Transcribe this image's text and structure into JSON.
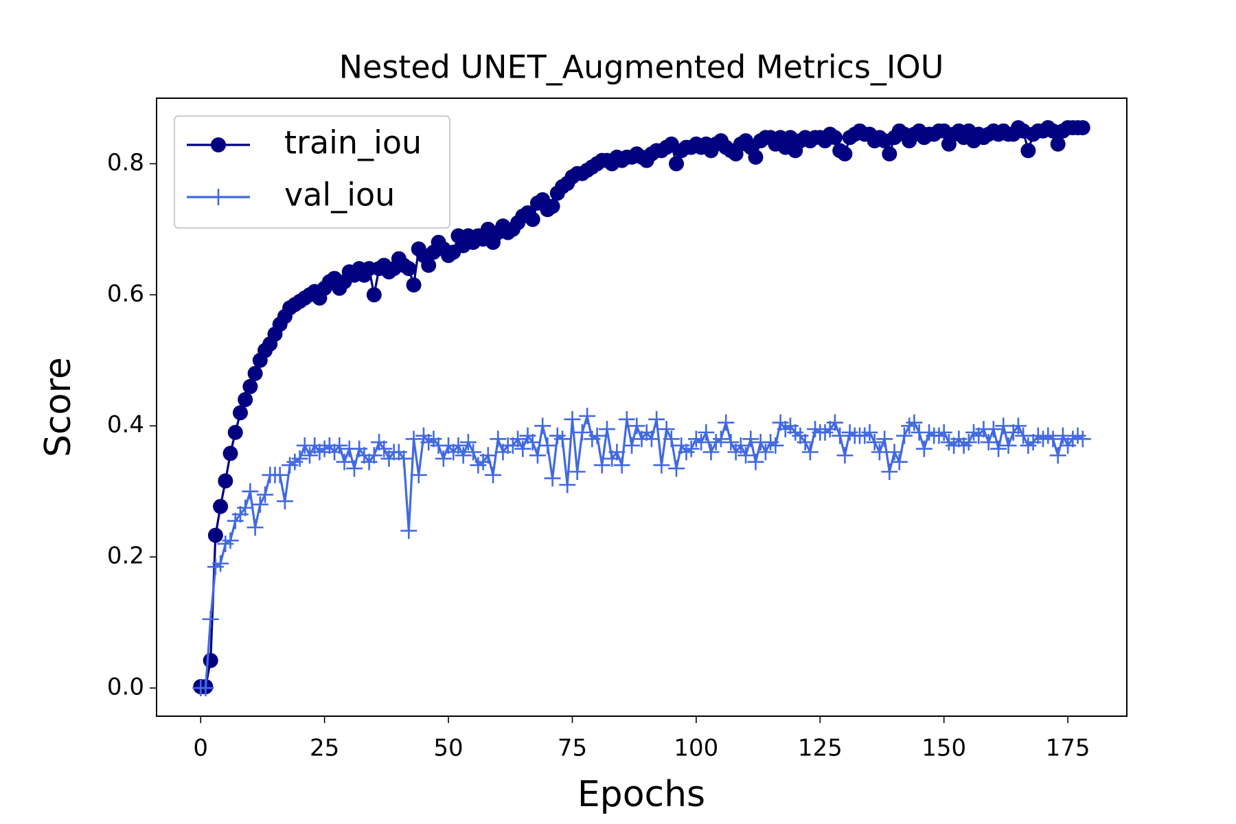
{
  "chart_data": {
    "type": "line",
    "title": "Nested UNET_Augmented Metrics_IOU",
    "xlabel": "Epochs",
    "ylabel": "Score",
    "x": [
      0,
      1,
      2,
      3,
      4,
      5,
      6,
      7,
      8,
      9,
      10,
      11,
      12,
      13,
      14,
      15,
      16,
      17,
      18,
      19,
      20,
      21,
      22,
      23,
      24,
      25,
      26,
      27,
      28,
      29,
      30,
      31,
      32,
      33,
      34,
      35,
      36,
      37,
      38,
      39,
      40,
      41,
      42,
      43,
      44,
      45,
      46,
      47,
      48,
      49,
      50,
      51,
      52,
      53,
      54,
      55,
      56,
      57,
      58,
      59,
      60,
      61,
      62,
      63,
      64,
      65,
      66,
      67,
      68,
      69,
      70,
      71,
      72,
      73,
      74,
      75,
      76,
      77,
      78,
      79,
      80,
      81,
      82,
      83,
      84,
      85,
      86,
      87,
      88,
      89,
      90,
      91,
      92,
      93,
      94,
      95,
      96,
      97,
      98,
      99,
      100,
      101,
      102,
      103,
      104,
      105,
      106,
      107,
      108,
      109,
      110,
      111,
      112,
      113,
      114,
      115,
      116,
      117,
      118,
      119,
      120,
      121,
      122,
      123,
      124,
      125,
      126,
      127,
      128,
      129,
      130,
      131,
      132,
      133,
      134,
      135,
      136,
      137,
      138,
      139,
      140,
      141,
      142,
      143,
      144,
      145,
      146,
      147,
      148,
      149,
      150,
      151,
      152,
      153,
      154,
      155,
      156,
      157,
      158,
      159,
      160,
      161,
      162,
      163,
      164,
      165,
      166,
      167,
      168,
      169,
      170,
      171,
      172,
      173,
      174,
      175,
      176,
      177,
      178
    ],
    "series": [
      {
        "name": "train_iou",
        "color": "#000080",
        "marker": "o",
        "values": [
          0.002,
          0.002,
          0.042,
          0.233,
          0.277,
          0.316,
          0.358,
          0.39,
          0.42,
          0.44,
          0.46,
          0.48,
          0.5,
          0.515,
          0.525,
          0.54,
          0.555,
          0.567,
          0.58,
          0.585,
          0.59,
          0.595,
          0.6,
          0.605,
          0.595,
          0.61,
          0.62,
          0.625,
          0.61,
          0.62,
          0.635,
          0.63,
          0.64,
          0.63,
          0.64,
          0.6,
          0.64,
          0.645,
          0.635,
          0.64,
          0.655,
          0.645,
          0.64,
          0.615,
          0.67,
          0.66,
          0.645,
          0.665,
          0.68,
          0.67,
          0.66,
          0.665,
          0.69,
          0.675,
          0.69,
          0.68,
          0.69,
          0.685,
          0.7,
          0.68,
          0.695,
          0.705,
          0.695,
          0.7,
          0.71,
          0.72,
          0.725,
          0.715,
          0.74,
          0.745,
          0.73,
          0.735,
          0.755,
          0.765,
          0.77,
          0.78,
          0.785,
          0.785,
          0.79,
          0.795,
          0.8,
          0.805,
          0.805,
          0.8,
          0.81,
          0.805,
          0.81,
          0.81,
          0.815,
          0.81,
          0.805,
          0.815,
          0.82,
          0.82,
          0.825,
          0.83,
          0.8,
          0.82,
          0.825,
          0.825,
          0.83,
          0.825,
          0.83,
          0.82,
          0.83,
          0.835,
          0.825,
          0.82,
          0.815,
          0.83,
          0.835,
          0.825,
          0.81,
          0.835,
          0.84,
          0.84,
          0.83,
          0.84,
          0.825,
          0.84,
          0.82,
          0.835,
          0.84,
          0.835,
          0.84,
          0.84,
          0.835,
          0.845,
          0.84,
          0.82,
          0.815,
          0.84,
          0.845,
          0.85,
          0.845,
          0.845,
          0.835,
          0.84,
          0.835,
          0.815,
          0.84,
          0.85,
          0.845,
          0.835,
          0.845,
          0.85,
          0.84,
          0.845,
          0.845,
          0.85,
          0.85,
          0.83,
          0.845,
          0.85,
          0.84,
          0.85,
          0.835,
          0.845,
          0.84,
          0.845,
          0.85,
          0.845,
          0.85,
          0.845,
          0.845,
          0.855,
          0.85,
          0.82,
          0.845,
          0.85,
          0.85,
          0.855,
          0.85,
          0.83,
          0.85,
          0.855,
          0.855,
          0.855,
          0.855
        ]
      },
      {
        "name": "val_iou",
        "color": "#4169e1",
        "marker": "+",
        "values": [
          0.0,
          0.0,
          0.105,
          0.185,
          0.19,
          0.22,
          0.225,
          0.255,
          0.265,
          0.275,
          0.3,
          0.245,
          0.28,
          0.295,
          0.325,
          0.325,
          0.325,
          0.285,
          0.34,
          0.345,
          0.35,
          0.37,
          0.355,
          0.37,
          0.36,
          0.365,
          0.37,
          0.36,
          0.37,
          0.345,
          0.365,
          0.335,
          0.365,
          0.355,
          0.345,
          0.355,
          0.375,
          0.365,
          0.35,
          0.36,
          0.36,
          0.35,
          0.24,
          0.38,
          0.325,
          0.385,
          0.375,
          0.38,
          0.37,
          0.35,
          0.37,
          0.36,
          0.37,
          0.355,
          0.375,
          0.36,
          0.34,
          0.345,
          0.355,
          0.325,
          0.38,
          0.36,
          0.37,
          0.37,
          0.38,
          0.365,
          0.385,
          0.375,
          0.355,
          0.4,
          0.37,
          0.32,
          0.385,
          0.38,
          0.31,
          0.41,
          0.33,
          0.39,
          0.415,
          0.38,
          0.385,
          0.34,
          0.395,
          0.35,
          0.36,
          0.34,
          0.41,
          0.37,
          0.4,
          0.38,
          0.39,
          0.38,
          0.41,
          0.34,
          0.395,
          0.38,
          0.335,
          0.37,
          0.36,
          0.365,
          0.38,
          0.375,
          0.39,
          0.36,
          0.375,
          0.38,
          0.405,
          0.375,
          0.36,
          0.37,
          0.355,
          0.38,
          0.345,
          0.375,
          0.36,
          0.375,
          0.37,
          0.405,
          0.395,
          0.4,
          0.39,
          0.385,
          0.375,
          0.36,
          0.395,
          0.39,
          0.39,
          0.395,
          0.405,
          0.385,
          0.355,
          0.39,
          0.385,
          0.385,
          0.385,
          0.39,
          0.375,
          0.36,
          0.38,
          0.33,
          0.36,
          0.345,
          0.385,
          0.4,
          0.405,
          0.39,
          0.365,
          0.39,
          0.385,
          0.385,
          0.39,
          0.375,
          0.37,
          0.38,
          0.37,
          0.375,
          0.39,
          0.385,
          0.395,
          0.375,
          0.395,
          0.365,
          0.4,
          0.37,
          0.39,
          0.4,
          0.385,
          0.37,
          0.375,
          0.385,
          0.38,
          0.385,
          0.38,
          0.355,
          0.385,
          0.37,
          0.38,
          0.385,
          0.38
        ]
      }
    ],
    "xlim": [
      -8.9,
      186.9
    ],
    "ylim": [
      -0.043,
      0.9
    ],
    "xticks": [
      0,
      25,
      50,
      75,
      100,
      125,
      150,
      175
    ],
    "yticks": [
      {
        "value": 0,
        "label": "0.0"
      },
      0.2,
      0.4,
      0.6,
      0.8
    ],
    "grid": false,
    "legend": "upper left"
  }
}
